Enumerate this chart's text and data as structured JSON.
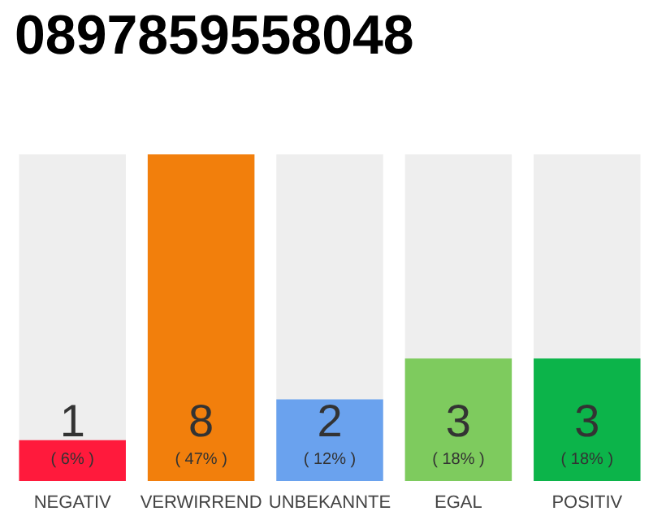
{
  "chart_data": {
    "type": "bar",
    "title": "0897859558048",
    "categories": [
      "NEGATIV",
      "VERWIRREND",
      "UNBEKANNTE",
      "EGAL",
      "POSITIV"
    ],
    "values": [
      1,
      8,
      2,
      3,
      3
    ],
    "colors": [
      "#ff1a3c",
      "#f27f0c",
      "#6aa2ee",
      "#7ecb5e",
      "#0cb44a"
    ],
    "ylim": [
      0,
      8
    ],
    "data_labels": true,
    "tick_labels": "x",
    "annotations": [
      "( 6% )",
      "( 47% )",
      "( 12% )",
      "( 18% )",
      "( 18% )"
    ]
  }
}
